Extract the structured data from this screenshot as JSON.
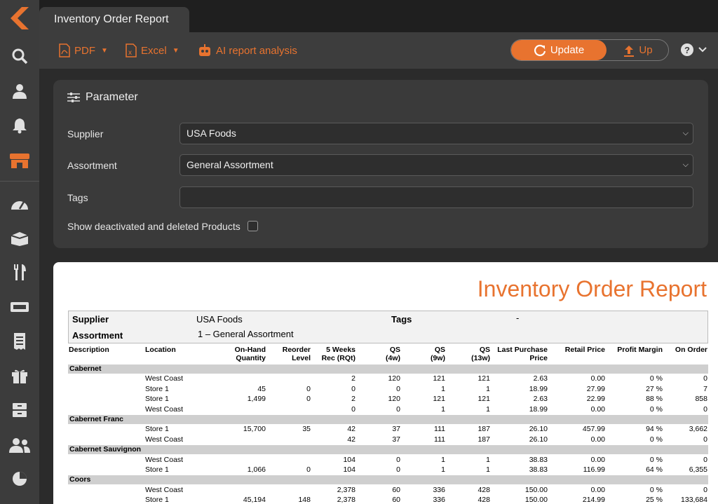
{
  "tab": {
    "title": "Inventory Order Report"
  },
  "toolbar": {
    "pdf_label": "PDF",
    "excel_label": "Excel",
    "ai_label": "AI report analysis",
    "update_label": "Update",
    "up_label": "Up"
  },
  "param": {
    "title": "Parameter",
    "supplier_label": "Supplier",
    "supplier_value": "USA Foods",
    "assortment_label": "Assortment",
    "assortment_value": "General Assortment",
    "tags_label": "Tags",
    "tags_value": "",
    "show_deleted_label": "Show deactivated and deleted Products"
  },
  "report": {
    "title": "Inventory Order Report",
    "supplier_label": "Supplier",
    "supplier_value": "USA Foods",
    "tags_label": "Tags",
    "tags_value": "-",
    "assortment_label": "Assortment",
    "assortment_value": "1 – General Assortment",
    "columns": {
      "description": "Description",
      "location": "Location",
      "onhand1": "On-Hand",
      "onhand2": "Quantity",
      "reorder1": "Reorder",
      "reorder2": "Level",
      "rec1": "5 Weeks",
      "rec2": "Rec (RQt)",
      "qs4_1": "QS",
      "qs4_2": "(4w)",
      "qs9_1": "QS",
      "qs9_2": "(9w)",
      "qs13_1": "QS",
      "qs13_2": "(13w)",
      "lpp1": "Last Purchase",
      "lpp2": "Price",
      "retail": "Retail Price",
      "margin": "Profit Margin",
      "onorder": "On Order"
    },
    "groups": [
      {
        "name": "Cabernet",
        "rows": [
          {
            "location": "West Coast",
            "onhand": "",
            "reorder": "",
            "rec": "2",
            "qs4": "120",
            "qs9": "121",
            "qs13": "121",
            "lpp": "2.63",
            "retail": "0.00",
            "margin": "0 %",
            "onorder": "0"
          },
          {
            "location": "Store 1",
            "onhand": "45",
            "reorder": "0",
            "rec": "0",
            "qs4": "0",
            "qs9": "1",
            "qs13": "1",
            "lpp": "18.99",
            "retail": "27.99",
            "margin": "27 %",
            "onorder": "7"
          },
          {
            "location": "Store 1",
            "onhand": "1,499",
            "reorder": "0",
            "rec": "2",
            "qs4": "120",
            "qs9": "121",
            "qs13": "121",
            "lpp": "2.63",
            "retail": "22.99",
            "margin": "88 %",
            "onorder": "858"
          },
          {
            "location": "West Coast",
            "onhand": "",
            "reorder": "",
            "rec": "0",
            "qs4": "0",
            "qs9": "1",
            "qs13": "1",
            "lpp": "18.99",
            "retail": "0.00",
            "margin": "0 %",
            "onorder": "0"
          }
        ]
      },
      {
        "name": "Cabernet Franc",
        "rows": [
          {
            "location": "Store 1",
            "onhand": "15,700",
            "reorder": "35",
            "rec": "42",
            "qs4": "37",
            "qs9": "111",
            "qs13": "187",
            "lpp": "26.10",
            "retail": "457.99",
            "margin": "94 %",
            "onorder": "3,662"
          },
          {
            "location": "West Coast",
            "onhand": "",
            "reorder": "",
            "rec": "42",
            "qs4": "37",
            "qs9": "111",
            "qs13": "187",
            "lpp": "26.10",
            "retail": "0.00",
            "margin": "0 %",
            "onorder": "0"
          }
        ]
      },
      {
        "name": "Cabernet Sauvignon",
        "rows": [
          {
            "location": "West Coast",
            "onhand": "",
            "reorder": "",
            "rec": "104",
            "qs4": "0",
            "qs9": "1",
            "qs13": "1",
            "lpp": "38.83",
            "retail": "0.00",
            "margin": "0 %",
            "onorder": "0"
          },
          {
            "location": "Store 1",
            "onhand": "1,066",
            "reorder": "0",
            "rec": "104",
            "qs4": "0",
            "qs9": "1",
            "qs13": "1",
            "lpp": "38.83",
            "retail": "116.99",
            "margin": "64 %",
            "onorder": "6,355"
          }
        ]
      },
      {
        "name": "Coors",
        "rows": [
          {
            "location": "West Coast",
            "onhand": "",
            "reorder": "",
            "rec": "2,378",
            "qs4": "60",
            "qs9": "336",
            "qs13": "428",
            "lpp": "150.00",
            "retail": "0.00",
            "margin": "0 %",
            "onorder": "0"
          },
          {
            "location": "Store 1",
            "onhand": "45,194",
            "reorder": "148",
            "rec": "2,378",
            "qs4": "60",
            "qs9": "336",
            "qs13": "428",
            "lpp": "150.00",
            "retail": "214.99",
            "margin": "25 %",
            "onorder": "133,684"
          }
        ]
      }
    ]
  },
  "colors": {
    "accent": "#e8732f",
    "sidebar": "#3c3c3c",
    "panel": "#3a3a3a"
  },
  "nav_icons": [
    "logo-icon",
    "search-icon",
    "user-icon",
    "bell-icon",
    "store-icon",
    "dashboard-icon",
    "box-icon",
    "fork-knife-icon",
    "ticket-icon",
    "receipt-icon",
    "gift-icon",
    "archive-icon",
    "users-icon",
    "pie-chart-icon"
  ]
}
